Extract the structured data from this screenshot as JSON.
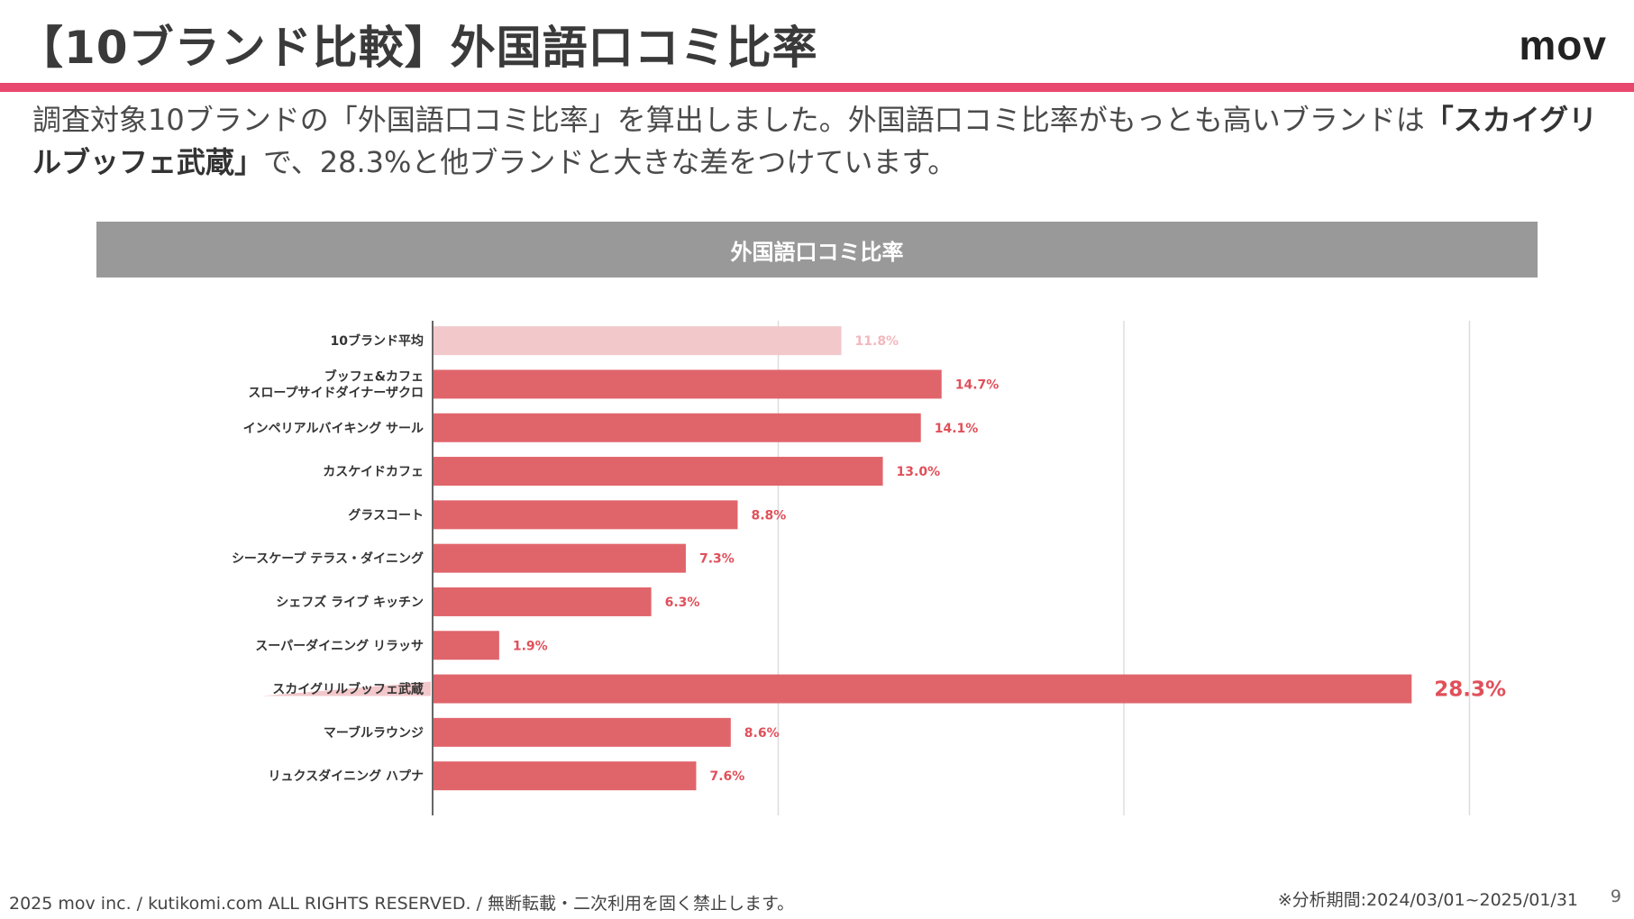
{
  "slide": {
    "title": "【10ブランド比較】外国語口コミ比率",
    "logo": "mov",
    "accent_color": "#e8486e",
    "description_pre": "調査対象10ブランドの「外国語口コミ比率」を算出しました。外国語口コミ比率がもっとも高いブランドは",
    "description_bold": "「スカイグリルブッフェ武蔵」",
    "description_post": "で、28.3%と他ブランドと大きな差をつけています。",
    "chart_header": "外国語口コミ比率",
    "footer_copyright": "2025 mov inc. / kutikomi.com ALL RIGHTS RESERVED. / 無断転載・二次利用を固く禁止します。",
    "footer_period": "※分析期間:2024/03/01~2025/01/31",
    "page_number": "9"
  },
  "chart_data": {
    "type": "bar",
    "orientation": "horizontal",
    "title": "外国語口コミ比率",
    "xlim": [
      0,
      30
    ],
    "grid": true,
    "categories": [
      "10ブランド平均",
      "ブッフェ&カフェ\nスロープサイドダイナーザクロ",
      "インペリアルバイキング サール",
      "カスケイドカフェ",
      "グラスコート",
      "シースケープ テラス・ダイニング",
      "シェフズ ライブ キッチン",
      "スーパーダイニング リラッサ",
      "スカイグリルブッフェ武蔵",
      "マーブルラウンジ",
      "リュクスダイニング ハプナ"
    ],
    "values": [
      11.8,
      14.7,
      14.1,
      13.0,
      8.8,
      7.3,
      6.3,
      1.9,
      28.3,
      8.6,
      7.6
    ],
    "labels": [
      "11.8%",
      "14.7%",
      "14.1%",
      "13.0%",
      "8.8%",
      "7.3%",
      "6.3%",
      "1.9%",
      "28.3%",
      "8.6%",
      "7.6%"
    ],
    "highlight_index": 8,
    "average_index": 0,
    "bar_color": "#e0656b",
    "average_color": "#f2c8cb",
    "average_label_color": "#f2b8be",
    "label_color": "#e0505a",
    "axis_color": "#333333",
    "grid_color": "#dddddd"
  }
}
